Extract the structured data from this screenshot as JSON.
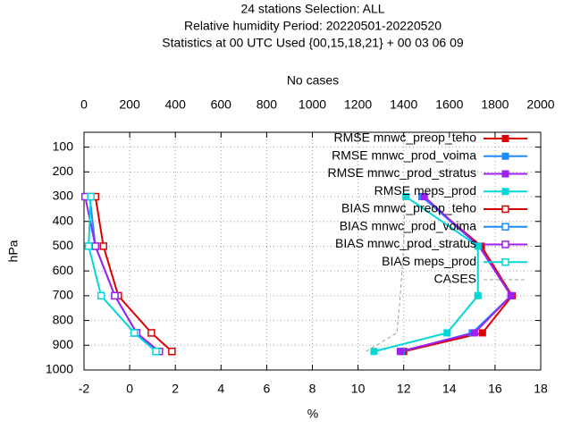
{
  "chart_data": {
    "type": "line",
    "title": [
      "24 stations Selection: ALL",
      "Relative humidity  Period: 20220501-20220520",
      "Statistics at 00 UTC  Used {00,15,18,21} + 00 03 06 09"
    ],
    "xlabel": "%",
    "x2label": "No cases",
    "ylabel": "hPa",
    "xlim": [
      -2,
      18
    ],
    "xticks": [
      -2,
      0,
      2,
      4,
      6,
      8,
      10,
      12,
      14,
      16,
      18
    ],
    "x2lim": [
      0,
      2000
    ],
    "x2ticks": [
      0,
      200,
      400,
      600,
      800,
      1000,
      1200,
      1400,
      1600,
      1800,
      2000
    ],
    "ylim": [
      1000,
      40
    ],
    "yticks": [
      100,
      200,
      300,
      400,
      500,
      600,
      700,
      800,
      900,
      1000
    ],
    "grid": true,
    "legend": "top-right",
    "y": [
      300,
      500,
      700,
      850,
      925
    ],
    "series": [
      {
        "name": "RMSE mnwc_preop_teho",
        "color": "#dd0000",
        "marker": "filled-square",
        "values": [
          12.8,
          15.4,
          16.75,
          15.45,
          12.0
        ]
      },
      {
        "name": "RMSE mnwc_prod_voima",
        "color": "#1e8cff",
        "marker": "filled-square",
        "values": [
          12.8,
          15.3,
          16.7,
          15.0,
          11.9
        ]
      },
      {
        "name": "RMSE mnwc_prod_stratus",
        "color": "#a020f0",
        "marker": "filled-square",
        "values": [
          12.9,
          15.3,
          16.7,
          15.1,
          11.85
        ]
      },
      {
        "name": "RMSE meps_prod",
        "color": "#00d8d8",
        "marker": "filled-square",
        "values": [
          12.1,
          15.25,
          15.25,
          13.9,
          10.7
        ]
      },
      {
        "name": "BIAS mnwc_preop_teho",
        "color": "#dd0000",
        "marker": "open-square",
        "values": [
          -1.5,
          -1.15,
          -0.5,
          0.95,
          1.85
        ]
      },
      {
        "name": "BIAS mnwc_prod_voima",
        "color": "#1e8cff",
        "marker": "open-square",
        "values": [
          -1.75,
          -1.5,
          -0.65,
          0.3,
          1.2
        ]
      },
      {
        "name": "BIAS mnwc_prod_stratus",
        "color": "#a020f0",
        "marker": "open-square",
        "values": [
          -1.95,
          -1.5,
          -0.65,
          0.3,
          1.3
        ]
      },
      {
        "name": "BIAS meps_prod",
        "color": "#00d8d8",
        "marker": "open-square",
        "values": [
          -1.7,
          -1.8,
          -1.25,
          0.2,
          1.15
        ]
      },
      {
        "name": "CASES",
        "color": "#a0a0a0",
        "dash": true,
        "axis": "x2",
        "values": [
          1405,
          1400,
          1385,
          1370,
          1235
        ]
      }
    ]
  }
}
